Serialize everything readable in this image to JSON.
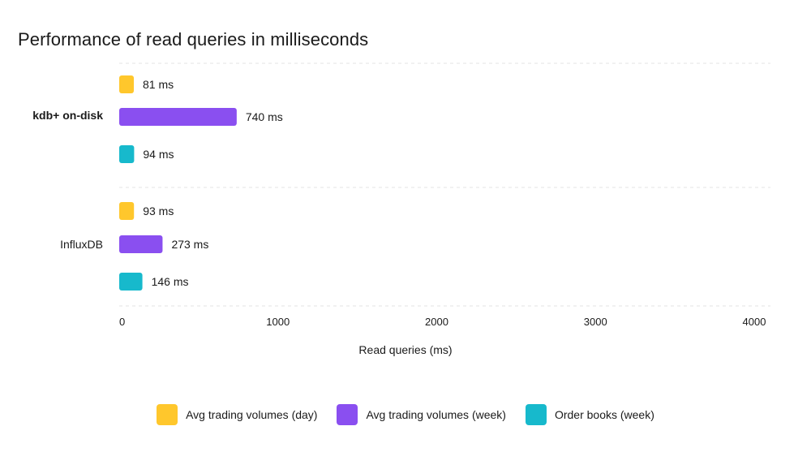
{
  "title": "Performance of read queries in milliseconds",
  "chart_data": {
    "type": "bar",
    "orientation": "horizontal",
    "title": "Performance of read queries in milliseconds",
    "xlabel": "Read queries (ms)",
    "ylabel": "",
    "xlim": [
      0,
      4000
    ],
    "xticks": [
      "0",
      "1000",
      "2000",
      "3000",
      "4000"
    ],
    "categories": [
      "kdb+ on-disk",
      "InfluxDB"
    ],
    "series": [
      {
        "name": "Avg trading volumes (day)",
        "color": "#FFC72C",
        "values": [
          81,
          93
        ],
        "labels": [
          "81 ms",
          "93 ms"
        ]
      },
      {
        "name": "Avg trading volumes (week)",
        "color": "#8A4FF0",
        "values": [
          740,
          273
        ],
        "labels": [
          "740 ms",
          "273 ms"
        ]
      },
      {
        "name": "Order books (week)",
        "color": "#17B9CC",
        "values": [
          94,
          146
        ],
        "labels": [
          "94 ms",
          "146 ms"
        ]
      }
    ],
    "grid": "horizontal dashed separators",
    "legend": "bottom-center"
  }
}
